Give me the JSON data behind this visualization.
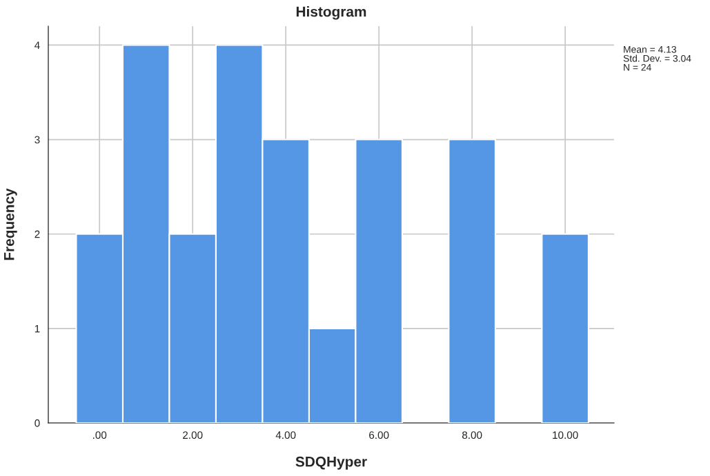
{
  "chart_data": {
    "type": "histogram",
    "title": "Histogram",
    "xlabel": "SDQHyper",
    "ylabel": "Frequency",
    "bins": [
      -0.5,
      0.5,
      1.5,
      2.5,
      3.5,
      4.5,
      5.5,
      6.5,
      7.5,
      8.5,
      9.5,
      10.5
    ],
    "values": [
      2,
      4,
      2,
      4,
      3,
      1,
      3,
      0,
      3,
      0,
      2
    ],
    "color": "#5596e5",
    "xlim": [
      -1.1,
      11.05
    ],
    "ylim": [
      0,
      4.2
    ],
    "xticks": [
      {
        "value": 0,
        "label": ".00"
      },
      {
        "value": 2,
        "label": "2.00"
      },
      {
        "value": 4,
        "label": "4.00"
      },
      {
        "value": 6,
        "label": "6.00"
      },
      {
        "value": 8,
        "label": "8.00"
      },
      {
        "value": 10,
        "label": "10.00"
      }
    ],
    "yticks": [
      0,
      1,
      2,
      3,
      4
    ],
    "grid": true,
    "annotations": [
      "Mean = 4.13",
      "Std. Dev. = 3.04",
      "N = 24"
    ]
  }
}
